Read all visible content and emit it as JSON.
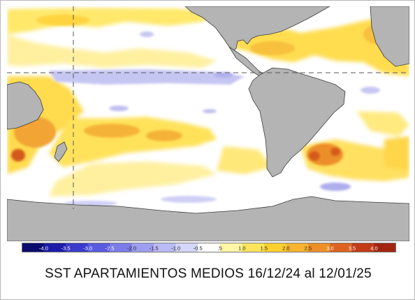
{
  "caption": "SST APARTAMIENTOS MEDIOS 16/12/24 al 12/01/25",
  "map_colors": {
    "ocean": "#ffffff",
    "land": "#b4b4b4",
    "coastline": "#3c3c3c",
    "reference_lines": "#555555"
  },
  "legend": {
    "ticks": [
      "-4.0",
      "-3.5",
      "-3.0",
      "-2.5",
      "-2.0",
      "-1.5",
      "-1.0",
      "-0.5",
      ".5",
      "1.0",
      "1.5",
      "2.0",
      "2.5",
      "3.0",
      "3.5",
      "4.0"
    ],
    "colors": [
      "#0c0c6e",
      "#1c1ca8",
      "#3a3acc",
      "#5a5ae0",
      "#7c7ce8",
      "#9e9ef0",
      "#babaf4",
      "#d6d6f8",
      "#ffffff",
      "#fff6a6",
      "#ffe55c",
      "#ffd030",
      "#f7b430",
      "#ee8e28",
      "#dd6420",
      "#c23c18",
      "#a22410"
    ]
  }
}
